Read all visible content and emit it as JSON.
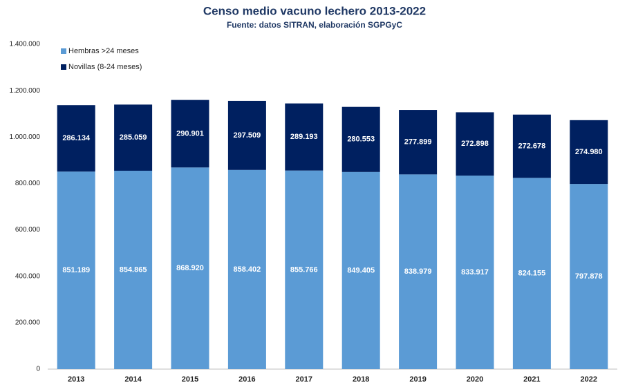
{
  "chart_data": {
    "type": "stacked_bar",
    "title": "Censo medio vacuno lechero 2013-2022",
    "subtitle": "Fuente: datos SITRAN, elaboración SGPGyC",
    "categories": [
      "2013",
      "2014",
      "2015",
      "2016",
      "2017",
      "2018",
      "2019",
      "2020",
      "2021",
      "2022"
    ],
    "series": [
      {
        "name": "Hembras >24 meses",
        "color": "#5b9bd5",
        "values": [
          851189,
          854865,
          868920,
          858402,
          855766,
          849405,
          838979,
          833917,
          824155,
          797878
        ],
        "value_labels": [
          "851.189",
          "854.865",
          "868.920",
          "858.402",
          "855.766",
          "849.405",
          "838.979",
          "833.917",
          "824.155",
          "797.878"
        ]
      },
      {
        "name": "Novillas (8-24 meses)",
        "color": "#002060",
        "values": [
          286134,
          285059,
          290901,
          297509,
          289193,
          280553,
          277899,
          272898,
          272678,
          274980
        ],
        "value_labels": [
          "286.134",
          "285.059",
          "290.901",
          "297.509",
          "289.193",
          "280.553",
          "277.899",
          "272.898",
          "272.678",
          "274.980"
        ]
      }
    ],
    "ylim": [
      0,
      1400000
    ],
    "yticks": [
      0,
      {
        "value": 200000,
        "label": "200.000"
      },
      {
        "value": 400000,
        "label": "400.000"
      },
      {
        "value": 600000,
        "label": "600.000"
      },
      {
        "value": 800000,
        "label": "800.000"
      },
      {
        "value": 1000000,
        "label": "1.000.000"
      },
      {
        "value": 1200000,
        "label": "1.200.000"
      },
      {
        "value": 1400000,
        "label": "1.400.000"
      }
    ],
    "grid": false,
    "legend": "top-left"
  }
}
